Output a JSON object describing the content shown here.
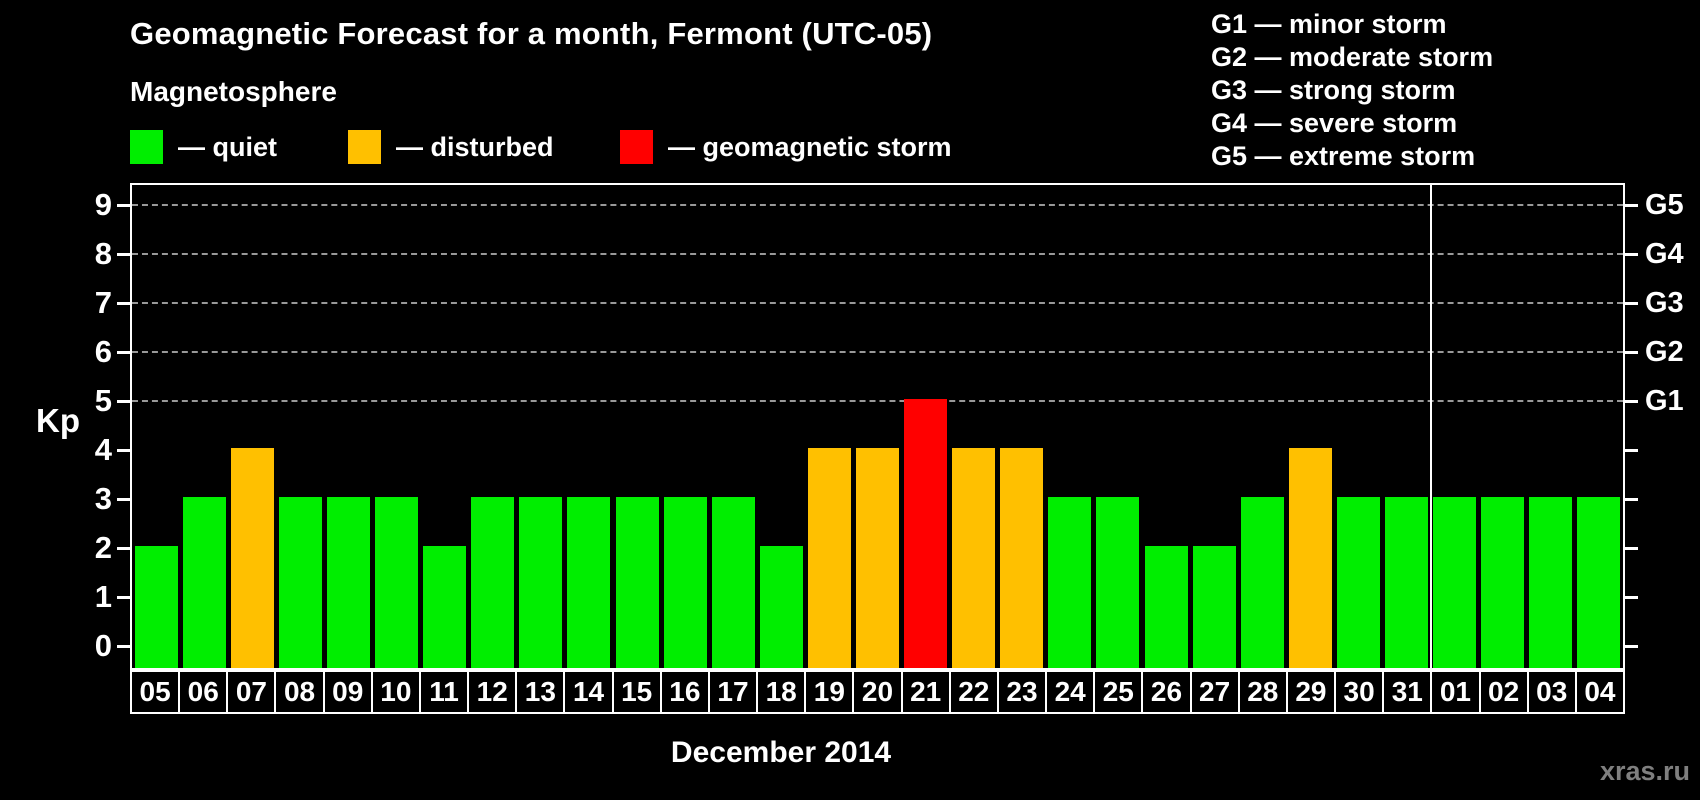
{
  "subtitle": "Magnetosphere",
  "legend": {
    "items": [
      {
        "label": "— quiet",
        "status": "quiet"
      },
      {
        "label": "— disturbed",
        "status": "disturbed"
      },
      {
        "label": "— geomagnetic storm",
        "status": "storm"
      }
    ]
  },
  "g_legend": [
    "G1 — minor storm",
    "G2 — moderate storm",
    "G3 — strong storm",
    "G4 — severe storm",
    "G5 — extreme storm"
  ],
  "watermark": "xras.ru",
  "colors": {
    "quiet": "#00ee00",
    "disturbed": "#ffc000",
    "storm": "#ff0000",
    "grid": "#999999",
    "axis": "#ffffff",
    "background": "#000000",
    "watermark": "#7f7f7f"
  },
  "chart_data": {
    "type": "bar",
    "title": "Geomagnetic Forecast for a month, Fermont (UTC-05)",
    "ylabel": "Kp",
    "xlabel": "December 2014",
    "ylim": [
      0,
      9
    ],
    "yticks": [
      0,
      1,
      2,
      3,
      4,
      5,
      6,
      7,
      8,
      9
    ],
    "gridlines": [
      5,
      6,
      7,
      8,
      9
    ],
    "right_axis_labels": [
      {
        "level": 5,
        "label": "G1"
      },
      {
        "level": 6,
        "label": "G2"
      },
      {
        "level": 7,
        "label": "G3"
      },
      {
        "level": 8,
        "label": "G4"
      },
      {
        "level": 9,
        "label": "G5"
      }
    ],
    "categories": [
      "05",
      "06",
      "07",
      "08",
      "09",
      "10",
      "11",
      "12",
      "13",
      "14",
      "15",
      "16",
      "17",
      "18",
      "19",
      "20",
      "21",
      "22",
      "23",
      "24",
      "25",
      "26",
      "27",
      "28",
      "29",
      "30",
      "31",
      "01",
      "02",
      "03",
      "04"
    ],
    "values": [
      2,
      3,
      4,
      3,
      3,
      3,
      2,
      3,
      3,
      3,
      3,
      3,
      3,
      2,
      4,
      4,
      5,
      4,
      4,
      3,
      3,
      2,
      2,
      3,
      4,
      3,
      3,
      3,
      3,
      3,
      3
    ],
    "statuses": [
      "quiet",
      "quiet",
      "disturbed",
      "quiet",
      "quiet",
      "quiet",
      "quiet",
      "quiet",
      "quiet",
      "quiet",
      "quiet",
      "quiet",
      "quiet",
      "quiet",
      "disturbed",
      "disturbed",
      "storm",
      "disturbed",
      "disturbed",
      "quiet",
      "quiet",
      "quiet",
      "quiet",
      "quiet",
      "disturbed",
      "quiet",
      "quiet",
      "quiet",
      "quiet",
      "quiet",
      "quiet"
    ],
    "month_separator_after_index": 26
  }
}
